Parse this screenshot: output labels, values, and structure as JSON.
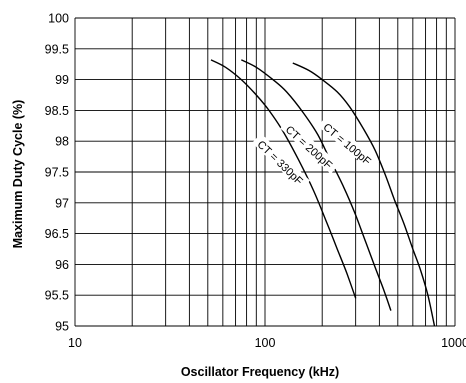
{
  "chart_data": {
    "type": "line",
    "title": "",
    "xlabel": "Oscillator  Frequency  (kHz)",
    "ylabel": "Maximum Duty Cycle  (%)",
    "xscale": "log",
    "xlim": [
      10,
      1000
    ],
    "ylim": [
      95,
      100
    ],
    "grid": true,
    "x_ticks": [
      "10",
      "100",
      "1000"
    ],
    "y_ticks": [
      "95",
      "95.5",
      "96",
      "96.5",
      "97",
      "97.5",
      "98",
      "98.5",
      "99",
      "99.5",
      "100"
    ],
    "series": [
      {
        "name": "CT = 100pF",
        "x": [
          140,
          170,
          200,
          240,
          280,
          330,
          380,
          430,
          480,
          540,
          600,
          660,
          720,
          780
        ],
        "y": [
          99.27,
          99.15,
          99.0,
          98.8,
          98.55,
          98.2,
          97.85,
          97.45,
          97.05,
          96.65,
          96.25,
          95.9,
          95.5,
          95.0
        ]
      },
      {
        "name": "CT = 200pF",
        "x": [
          75,
          90,
          110,
          130,
          160,
          190,
          220,
          260,
          300,
          340,
          380,
          420,
          460
        ],
        "y": [
          99.32,
          99.2,
          99.0,
          98.8,
          98.45,
          98.1,
          97.7,
          97.25,
          96.8,
          96.35,
          95.95,
          95.6,
          95.25
        ]
      },
      {
        "name": "CT = 330pF",
        "x": [
          52,
          62,
          75,
          90,
          105,
          125,
          150,
          180,
          210,
          240,
          270,
          300
        ],
        "y": [
          99.32,
          99.2,
          99.0,
          98.75,
          98.5,
          98.15,
          97.7,
          97.2,
          96.7,
          96.25,
          95.85,
          95.45
        ]
      }
    ]
  }
}
